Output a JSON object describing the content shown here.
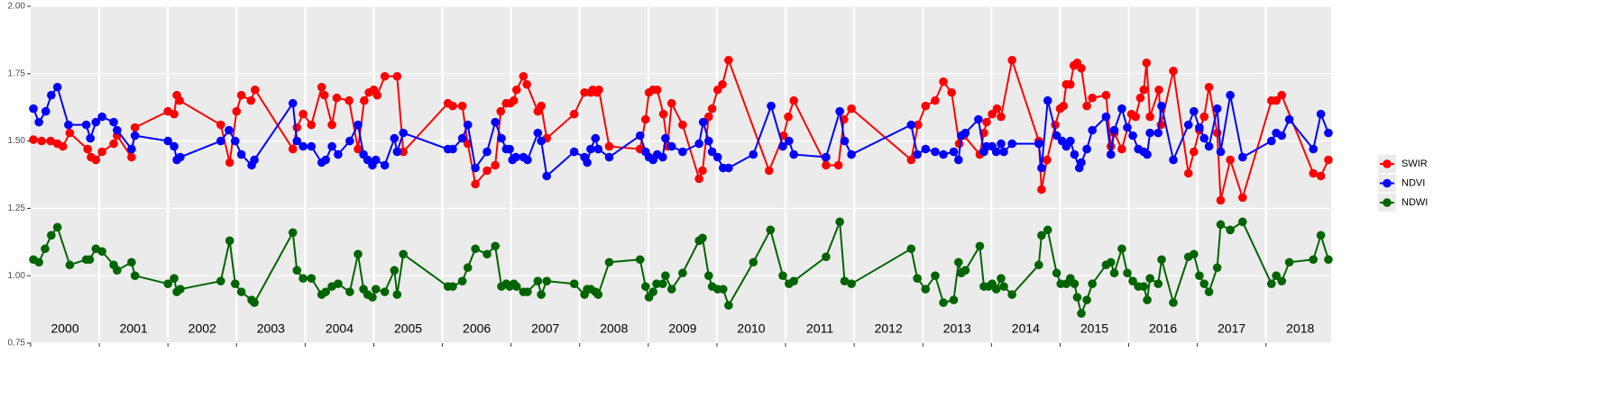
{
  "chart_data": {
    "type": "line",
    "xlim": [
      2000,
      2018.95
    ],
    "ylim": [
      0.75,
      2.0
    ],
    "yticks": [
      {
        "value": 0.75,
        "label": "0.75"
      },
      {
        "value": 1.0,
        "label": "1.00"
      },
      {
        "value": 1.25,
        "label": "1.25"
      },
      {
        "value": 1.5,
        "label": "1.50"
      },
      {
        "value": 1.75,
        "label": "1.75"
      },
      {
        "value": 2.0,
        "label": "2.00"
      }
    ],
    "xticks": [
      {
        "value": 2000,
        "label": "2000"
      },
      {
        "value": 2001,
        "label": "2001"
      },
      {
        "value": 2002,
        "label": "2002"
      },
      {
        "value": 2003,
        "label": "2003"
      },
      {
        "value": 2004,
        "label": "2004"
      },
      {
        "value": 2005,
        "label": "2005"
      },
      {
        "value": 2006,
        "label": "2006"
      },
      {
        "value": 2007,
        "label": "2007"
      },
      {
        "value": 2008,
        "label": "2008"
      },
      {
        "value": 2009,
        "label": "2009"
      },
      {
        "value": 2010,
        "label": "2010"
      },
      {
        "value": 2011,
        "label": "2011"
      },
      {
        "value": 2012,
        "label": "2012"
      },
      {
        "value": 2013,
        "label": "2013"
      },
      {
        "value": 2014,
        "label": "2014"
      },
      {
        "value": 2015,
        "label": "2015"
      },
      {
        "value": 2016,
        "label": "2016"
      },
      {
        "value": 2017,
        "label": "2017"
      },
      {
        "value": 2018,
        "label": "2018"
      }
    ],
    "grid": true,
    "legend": "right",
    "series": [
      {
        "name": "SWIR",
        "color": "#ff0000",
        "x": [
          2000.04,
          2000.16,
          2000.29,
          2000.39,
          2000.47,
          2000.57,
          2000.83,
          2000.88,
          2000.95,
          2001.04,
          2001.21,
          2001.26,
          2001.47,
          2001.52,
          2002.0,
          2002.09,
          2002.13,
          2002.17,
          2002.77,
          2002.9,
          2003.0,
          2003.07,
          2003.21,
          2003.27,
          2003.82,
          2003.88,
          2003.97,
          2004.09,
          2004.24,
          2004.28,
          2004.39,
          2004.46,
          2004.64,
          2004.77,
          2004.86,
          2004.93,
          2005.0,
          2005.05,
          2005.16,
          2005.34,
          2005.43,
          2006.08,
          2006.15,
          2006.29,
          2006.37,
          2006.48,
          2006.65,
          2006.77,
          2006.85,
          2006.93,
          2006.99,
          2007.04,
          2007.08,
          2007.18,
          2007.23,
          2007.39,
          2007.44,
          2007.52,
          2007.92,
          2008.07,
          2008.16,
          2008.19,
          2008.25,
          2008.28,
          2008.43,
          2008.88,
          2008.96,
          2009.01,
          2009.07,
          2009.13,
          2009.22,
          2009.28,
          2009.34,
          2009.5,
          2009.74,
          2009.79,
          2009.88,
          2009.93,
          2010.01,
          2010.08,
          2010.17,
          2010.76,
          2010.97,
          2011.04,
          2011.12,
          2011.59,
          2011.77,
          2011.85,
          2011.96,
          2012.83,
          2012.93,
          2013.04,
          2013.18,
          2013.3,
          2013.42,
          2013.53,
          2013.6,
          2013.83,
          2013.89,
          2013.93,
          2014.01,
          2014.08,
          2014.14,
          2014.3,
          2014.69,
          2014.73,
          2014.81,
          2014.93,
          2015.0,
          2015.05,
          2015.09,
          2015.15,
          2015.2,
          2015.25,
          2015.31,
          2015.39,
          2015.47,
          2015.67,
          2015.74,
          2015.79,
          2015.9,
          2016.04,
          2016.1,
          2016.17,
          2016.22,
          2016.26,
          2016.31,
          2016.44,
          2016.47,
          2016.65,
          2016.87,
          2016.95,
          2017.03,
          2017.1,
          2017.17,
          2017.29,
          2017.34,
          2017.48,
          2017.66,
          2018.08,
          2018.15,
          2018.23,
          2018.69,
          2018.8,
          2018.91
        ],
        "values": [
          1.505,
          1.5,
          1.5,
          1.49,
          1.48,
          1.53,
          1.47,
          1.44,
          1.43,
          1.46,
          1.49,
          1.52,
          1.44,
          1.55,
          1.61,
          1.6,
          1.67,
          1.65,
          1.56,
          1.42,
          1.61,
          1.67,
          1.65,
          1.69,
          1.47,
          1.55,
          1.6,
          1.56,
          1.7,
          1.67,
          1.56,
          1.66,
          1.65,
          1.47,
          1.65,
          1.68,
          1.69,
          1.67,
          1.74,
          1.74,
          1.46,
          1.64,
          1.63,
          1.63,
          1.49,
          1.34,
          1.39,
          1.41,
          1.61,
          1.64,
          1.64,
          1.65,
          1.69,
          1.74,
          1.71,
          1.61,
          1.63,
          1.51,
          1.6,
          1.68,
          1.68,
          1.69,
          1.68,
          1.69,
          1.48,
          1.47,
          1.58,
          1.68,
          1.69,
          1.69,
          1.6,
          1.48,
          1.64,
          1.56,
          1.36,
          1.39,
          1.59,
          1.62,
          1.69,
          1.71,
          1.8,
          1.39,
          1.52,
          1.59,
          1.65,
          1.41,
          1.41,
          1.58,
          1.62,
          1.43,
          1.56,
          1.63,
          1.65,
          1.72,
          1.68,
          1.49,
          1.52,
          1.45,
          1.53,
          1.57,
          1.6,
          1.62,
          1.59,
          1.8,
          1.5,
          1.32,
          1.43,
          1.56,
          1.62,
          1.63,
          1.71,
          1.71,
          1.78,
          1.79,
          1.77,
          1.63,
          1.66,
          1.67,
          1.48,
          1.53,
          1.47,
          1.6,
          1.59,
          1.66,
          1.69,
          1.79,
          1.59,
          1.69,
          1.56,
          1.76,
          1.38,
          1.46,
          1.54,
          1.59,
          1.7,
          1.53,
          1.28,
          1.43,
          1.29,
          1.65,
          1.65,
          1.67,
          1.38,
          1.37,
          1.43
        ]
      },
      {
        "name": "NDVI",
        "color": "#0000ff",
        "x": [
          2000.04,
          2000.12,
          2000.22,
          2000.3,
          2000.39,
          2000.55,
          2000.81,
          2000.87,
          2000.95,
          2001.04,
          2001.21,
          2001.26,
          2001.47,
          2001.52,
          2002.0,
          2002.09,
          2002.13,
          2002.18,
          2002.77,
          2002.89,
          2002.98,
          2003.07,
          2003.22,
          2003.26,
          2003.82,
          2003.88,
          2003.97,
          2004.09,
          2004.24,
          2004.3,
          2004.39,
          2004.48,
          2004.65,
          2004.77,
          2004.85,
          2004.91,
          2004.98,
          2005.03,
          2005.16,
          2005.3,
          2005.34,
          2005.43,
          2006.08,
          2006.15,
          2006.29,
          2006.37,
          2006.48,
          2006.65,
          2006.77,
          2006.86,
          2006.93,
          2006.98,
          2007.02,
          2007.07,
          2007.18,
          2007.24,
          2007.39,
          2007.44,
          2007.52,
          2007.92,
          2008.07,
          2008.11,
          2008.16,
          2008.23,
          2008.27,
          2008.43,
          2008.88,
          2008.96,
          2009.01,
          2009.07,
          2009.13,
          2009.21,
          2009.25,
          2009.34,
          2009.5,
          2009.74,
          2009.8,
          2009.88,
          2009.93,
          2010.01,
          2010.09,
          2010.17,
          2010.53,
          2010.79,
          2010.96,
          2011.05,
          2011.12,
          2011.59,
          2011.79,
          2011.86,
          2011.96,
          2012.83,
          2012.92,
          2013.04,
          2013.18,
          2013.3,
          2013.45,
          2013.52,
          2013.56,
          2013.62,
          2013.81,
          2013.89,
          2013.93,
          2014.01,
          2014.07,
          2014.14,
          2014.18,
          2014.3,
          2014.69,
          2014.73,
          2014.82,
          2014.95,
          2015.03,
          2015.09,
          2015.15,
          2015.21,
          2015.28,
          2015.31,
          2015.39,
          2015.47,
          2015.67,
          2015.74,
          2015.79,
          2015.9,
          2015.98,
          2016.06,
          2016.14,
          2016.22,
          2016.27,
          2016.31,
          2016.43,
          2016.48,
          2016.65,
          2016.87,
          2016.95,
          2017.03,
          2017.1,
          2017.17,
          2017.29,
          2017.34,
          2017.48,
          2017.66,
          2018.08,
          2018.15,
          2018.23,
          2018.34,
          2018.69,
          2018.8,
          2018.91
        ],
        "values": [
          1.62,
          1.57,
          1.61,
          1.67,
          1.7,
          1.56,
          1.56,
          1.51,
          1.57,
          1.59,
          1.57,
          1.54,
          1.47,
          1.52,
          1.5,
          1.48,
          1.43,
          1.44,
          1.5,
          1.54,
          1.5,
          1.45,
          1.41,
          1.43,
          1.64,
          1.5,
          1.48,
          1.48,
          1.42,
          1.43,
          1.48,
          1.45,
          1.5,
          1.56,
          1.45,
          1.43,
          1.41,
          1.43,
          1.41,
          1.51,
          1.46,
          1.53,
          1.47,
          1.47,
          1.51,
          1.56,
          1.4,
          1.46,
          1.57,
          1.51,
          1.47,
          1.47,
          1.43,
          1.44,
          1.44,
          1.43,
          1.53,
          1.5,
          1.37,
          1.46,
          1.44,
          1.42,
          1.47,
          1.51,
          1.47,
          1.44,
          1.52,
          1.46,
          1.44,
          1.43,
          1.45,
          1.44,
          1.51,
          1.48,
          1.46,
          1.49,
          1.57,
          1.5,
          1.46,
          1.44,
          1.4,
          1.4,
          1.45,
          1.63,
          1.48,
          1.5,
          1.45,
          1.44,
          1.61,
          1.5,
          1.45,
          1.56,
          1.45,
          1.47,
          1.46,
          1.45,
          1.46,
          1.43,
          1.52,
          1.53,
          1.58,
          1.46,
          1.48,
          1.48,
          1.46,
          1.49,
          1.46,
          1.49,
          1.49,
          1.4,
          1.65,
          1.52,
          1.5,
          1.48,
          1.5,
          1.45,
          1.4,
          1.42,
          1.47,
          1.54,
          1.59,
          1.45,
          1.54,
          1.62,
          1.55,
          1.52,
          1.47,
          1.46,
          1.45,
          1.53,
          1.53,
          1.63,
          1.43,
          1.56,
          1.61,
          1.55,
          1.51,
          1.48,
          1.62,
          1.46,
          1.67,
          1.44,
          1.5,
          1.53,
          1.52,
          1.58,
          1.47,
          1.6,
          1.53
        ]
      },
      {
        "name": "NDWI",
        "color": "#006400",
        "x": [
          2000.04,
          2000.12,
          2000.21,
          2000.3,
          2000.39,
          2000.57,
          2000.81,
          2000.86,
          2000.95,
          2001.04,
          2001.21,
          2001.26,
          2001.47,
          2001.52,
          2002.0,
          2002.09,
          2002.13,
          2002.18,
          2002.77,
          2002.9,
          2002.98,
          2003.07,
          2003.22,
          2003.26,
          2003.82,
          2003.88,
          2003.97,
          2004.09,
          2004.24,
          2004.3,
          2004.39,
          2004.48,
          2004.65,
          2004.77,
          2004.85,
          2004.91,
          2004.98,
          2005.03,
          2005.16,
          2005.3,
          2005.34,
          2005.43,
          2006.08,
          2006.15,
          2006.29,
          2006.37,
          2006.48,
          2006.65,
          2006.77,
          2006.86,
          2006.93,
          2006.98,
          2007.04,
          2007.08,
          2007.18,
          2007.24,
          2007.39,
          2007.44,
          2007.52,
          2007.92,
          2008.07,
          2008.11,
          2008.16,
          2008.23,
          2008.27,
          2008.43,
          2008.88,
          2008.96,
          2009.01,
          2009.07,
          2009.12,
          2009.21,
          2009.25,
          2009.34,
          2009.5,
          2009.74,
          2009.79,
          2009.88,
          2009.93,
          2010.01,
          2010.09,
          2010.17,
          2010.53,
          2010.78,
          2010.96,
          2011.05,
          2011.12,
          2011.59,
          2011.79,
          2011.86,
          2011.96,
          2012.83,
          2012.92,
          2013.04,
          2013.18,
          2013.3,
          2013.45,
          2013.52,
          2013.56,
          2013.62,
          2013.83,
          2013.89,
          2013.96,
          2014.01,
          2014.07,
          2014.14,
          2014.18,
          2014.3,
          2014.69,
          2014.73,
          2014.82,
          2014.95,
          2015.01,
          2015.09,
          2015.15,
          2015.21,
          2015.25,
          2015.31,
          2015.39,
          2015.47,
          2015.67,
          2015.74,
          2015.79,
          2015.9,
          2015.98,
          2016.06,
          2016.14,
          2016.22,
          2016.27,
          2016.31,
          2016.43,
          2016.48,
          2016.65,
          2016.87,
          2016.95,
          2017.03,
          2017.1,
          2017.17,
          2017.29,
          2017.34,
          2017.48,
          2017.66,
          2018.08,
          2018.15,
          2018.23,
          2018.34,
          2018.69,
          2018.8,
          2018.91
        ],
        "values": [
          1.06,
          1.05,
          1.1,
          1.15,
          1.18,
          1.04,
          1.06,
          1.06,
          1.1,
          1.09,
          1.04,
          1.02,
          1.05,
          1.0,
          0.97,
          0.99,
          0.94,
          0.95,
          0.98,
          1.13,
          0.97,
          0.94,
          0.91,
          0.9,
          1.16,
          1.02,
          0.99,
          0.99,
          0.93,
          0.94,
          0.96,
          0.97,
          0.94,
          1.08,
          0.95,
          0.93,
          0.92,
          0.95,
          0.94,
          1.02,
          0.93,
          1.08,
          0.96,
          0.96,
          0.98,
          1.03,
          1.1,
          1.08,
          1.11,
          0.96,
          0.97,
          0.96,
          0.97,
          0.96,
          0.94,
          0.94,
          0.98,
          0.93,
          0.98,
          0.97,
          0.93,
          0.95,
          0.95,
          0.94,
          0.93,
          1.05,
          1.06,
          0.96,
          0.92,
          0.94,
          0.97,
          0.97,
          1.0,
          0.95,
          1.01,
          1.13,
          1.14,
          1.0,
          0.96,
          0.95,
          0.95,
          0.89,
          1.05,
          1.17,
          1.0,
          0.97,
          0.98,
          1.07,
          1.2,
          0.98,
          0.97,
          1.1,
          0.99,
          0.95,
          1.0,
          0.9,
          0.91,
          1.05,
          1.01,
          1.02,
          1.11,
          0.96,
          0.96,
          0.97,
          0.95,
          0.99,
          0.96,
          0.93,
          1.04,
          1.15,
          1.17,
          1.01,
          0.97,
          0.97,
          0.99,
          0.97,
          0.92,
          0.86,
          0.91,
          0.97,
          1.04,
          1.05,
          1.01,
          1.1,
          1.01,
          0.98,
          0.96,
          0.96,
          0.91,
          0.99,
          0.97,
          1.06,
          0.9,
          1.07,
          1.08,
          1.0,
          0.97,
          0.94,
          1.03,
          1.19,
          1.17,
          1.2,
          0.97,
          1.0,
          0.98,
          1.05,
          1.06,
          1.15,
          1.06
        ]
      }
    ]
  }
}
